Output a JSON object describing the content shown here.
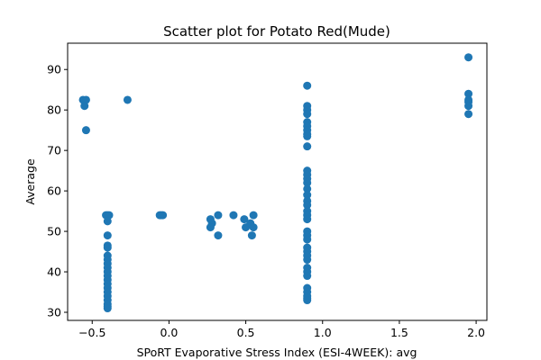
{
  "chart_data": {
    "type": "scatter",
    "title": "Scatter plot for Potato Red(Mude)",
    "xlabel": "SPoRT Evaporative Stress Index (ESI-4WEEK): avg",
    "ylabel": "Average",
    "xlim": [
      -0.66,
      2.07
    ],
    "ylim": [
      28,
      96.5
    ],
    "xticks": [
      -0.5,
      0.0,
      0.5,
      1.0,
      1.5,
      2.0
    ],
    "xtick_labels": [
      "−0.5",
      "0.0",
      "0.5",
      "1.0",
      "1.5",
      "2.0"
    ],
    "yticks": [
      30,
      40,
      50,
      60,
      70,
      80,
      90
    ],
    "ytick_labels": [
      "30",
      "40",
      "50",
      "60",
      "70",
      "80",
      "90"
    ],
    "grid": false,
    "marker_color": "#1f77b4",
    "series": [
      {
        "points": [
          [
            -0.56,
            82.5
          ],
          [
            -0.54,
            82.5
          ],
          [
            -0.55,
            81
          ],
          [
            -0.54,
            75
          ],
          [
            -0.27,
            82.5
          ],
          [
            -0.41,
            54
          ],
          [
            -0.4,
            54
          ],
          [
            -0.39,
            54
          ],
          [
            -0.4,
            52.5
          ],
          [
            -0.4,
            49
          ],
          [
            -0.4,
            46.5
          ],
          [
            -0.4,
            46
          ],
          [
            -0.4,
            44
          ],
          [
            -0.4,
            43
          ],
          [
            -0.4,
            42
          ],
          [
            -0.4,
            41
          ],
          [
            -0.4,
            40
          ],
          [
            -0.4,
            39
          ],
          [
            -0.4,
            38
          ],
          [
            -0.4,
            37
          ],
          [
            -0.4,
            36
          ],
          [
            -0.4,
            35
          ],
          [
            -0.4,
            34
          ],
          [
            -0.4,
            33
          ],
          [
            -0.4,
            32
          ],
          [
            -0.4,
            31.5
          ],
          [
            -0.4,
            31
          ],
          [
            -0.06,
            54
          ],
          [
            -0.05,
            54
          ],
          [
            -0.04,
            54
          ],
          [
            0.27,
            53
          ],
          [
            0.28,
            52
          ],
          [
            0.27,
            51
          ],
          [
            0.32,
            54
          ],
          [
            0.32,
            49
          ],
          [
            0.42,
            54
          ],
          [
            0.49,
            53
          ],
          [
            0.5,
            51
          ],
          [
            0.53,
            52
          ],
          [
            0.55,
            54
          ],
          [
            0.55,
            51
          ],
          [
            0.54,
            49
          ],
          [
            0.9,
            86
          ],
          [
            0.9,
            81
          ],
          [
            0.9,
            80
          ],
          [
            0.9,
            79
          ],
          [
            0.9,
            77
          ],
          [
            0.9,
            76
          ],
          [
            0.9,
            75
          ],
          [
            0.9,
            74
          ],
          [
            0.9,
            73.5
          ],
          [
            0.9,
            71
          ],
          [
            0.9,
            65
          ],
          [
            0.9,
            64
          ],
          [
            0.9,
            63
          ],
          [
            0.9,
            62
          ],
          [
            0.9,
            60.5
          ],
          [
            0.9,
            59
          ],
          [
            0.9,
            57.5
          ],
          [
            0.9,
            56.5
          ],
          [
            0.9,
            55
          ],
          [
            0.9,
            54
          ],
          [
            0.9,
            53
          ],
          [
            0.9,
            50
          ],
          [
            0.9,
            49
          ],
          [
            0.9,
            48
          ],
          [
            0.9,
            46
          ],
          [
            0.9,
            45
          ],
          [
            0.9,
            44
          ],
          [
            0.9,
            43
          ],
          [
            0.9,
            41
          ],
          [
            0.9,
            40
          ],
          [
            0.9,
            39
          ],
          [
            0.9,
            36
          ],
          [
            0.9,
            35
          ],
          [
            0.9,
            34
          ],
          [
            0.9,
            33.5
          ],
          [
            0.9,
            33
          ],
          [
            1.95,
            93
          ],
          [
            1.95,
            84
          ],
          [
            1.95,
            82.5
          ],
          [
            1.95,
            82
          ],
          [
            1.95,
            81
          ],
          [
            1.95,
            79
          ]
        ]
      }
    ]
  }
}
